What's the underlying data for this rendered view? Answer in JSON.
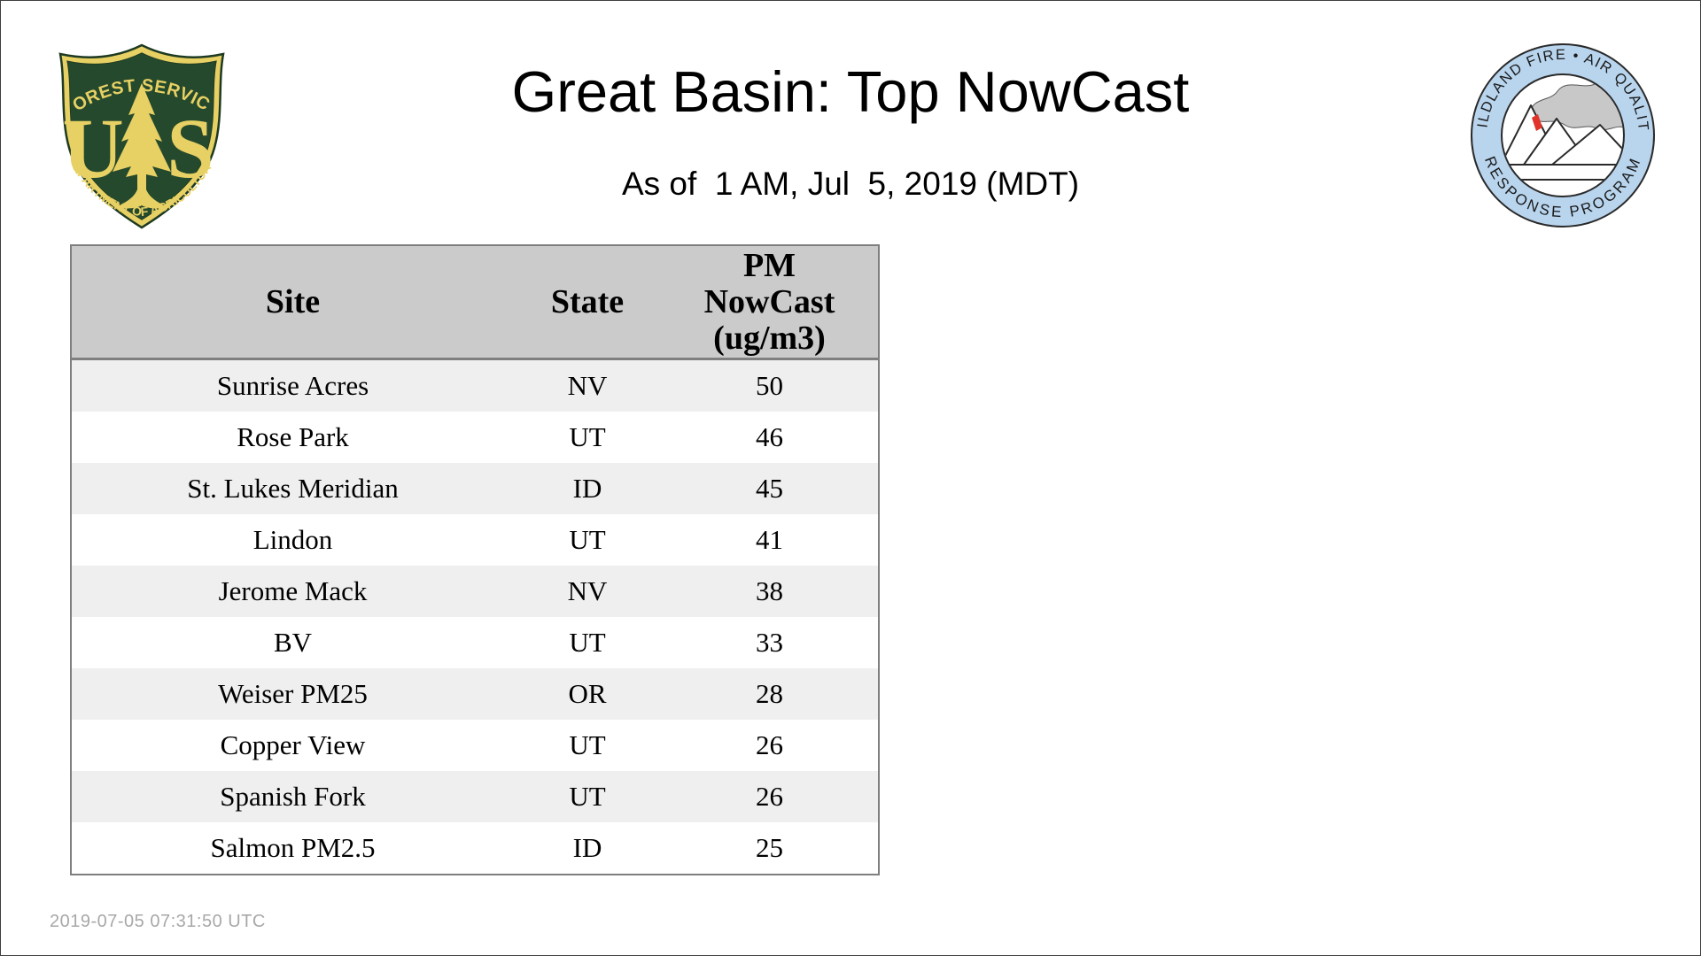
{
  "page": {
    "title": "Great Basin: Top NowCast",
    "subtitle": "As of  1 AM, Jul  5, 2019 (MDT)",
    "footer_timestamp": "2019-07-05 07:31:50 UTC",
    "background_color": "#ffffff"
  },
  "logos": {
    "forest_service": {
      "alt": "US Forest Service shield",
      "arc_top": "FOREST SERVICE",
      "monogram_left": "U",
      "monogram_right": "S",
      "arc_bottom": "DEPARTMENT OF AGRICULTURE",
      "field_color": "#25492c",
      "gold_color": "#e7d064"
    },
    "airfire": {
      "alt": "Wildland Fire Air Quality Response Program seal",
      "arc_top": "WILDLAND FIRE • AIR QUALITY",
      "arc_bottom": "RESPONSE PROGRAM",
      "ring_color": "#b9d5ee",
      "smoke_color": "#c8c8c8",
      "flame_color": "#e0342b"
    }
  },
  "table": {
    "columns": [
      {
        "label": "Site"
      },
      {
        "label": "State"
      },
      {
        "label": "PM NowCast (ug/m3)",
        "lines": [
          "PM",
          "NowCast",
          "(ug/m3)"
        ]
      }
    ],
    "rows": [
      {
        "site": "Sunrise Acres",
        "state": "NV",
        "value": "50"
      },
      {
        "site": "Rose Park",
        "state": "UT",
        "value": "46"
      },
      {
        "site": "St. Lukes Meridian",
        "state": "ID",
        "value": "45"
      },
      {
        "site": "Lindon",
        "state": "UT",
        "value": "41"
      },
      {
        "site": "Jerome Mack",
        "state": "NV",
        "value": "38"
      },
      {
        "site": "BV",
        "state": "UT",
        "value": "33"
      },
      {
        "site": "Weiser PM25",
        "state": "OR",
        "value": "28"
      },
      {
        "site": "Copper View",
        "state": "UT",
        "value": "26"
      },
      {
        "site": "Spanish Fork",
        "state": "UT",
        "value": "26"
      },
      {
        "site": "Salmon PM2.5",
        "state": "ID",
        "value": "25"
      }
    ],
    "colors": {
      "header_bg": "#cbcbcb",
      "row_alt_bg": "#efefef",
      "border": "#7f7f7f"
    }
  }
}
